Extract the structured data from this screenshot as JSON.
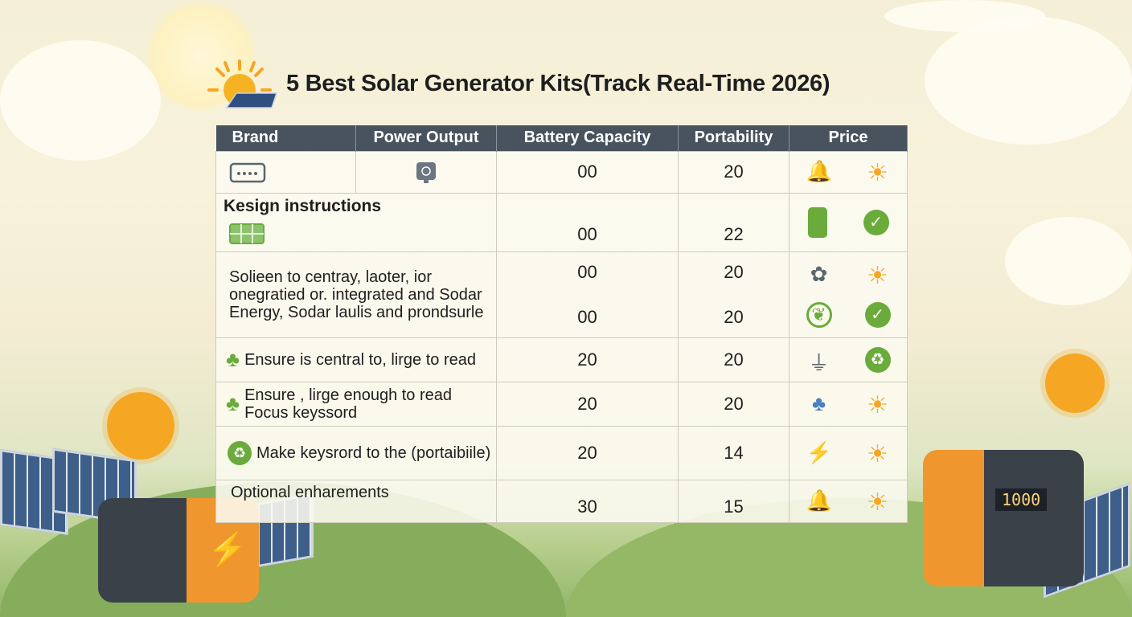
{
  "title": "5 Best Solar Generator Kits(Track Real-Time 2026)",
  "table": {
    "headers": [
      "Brand",
      "Power Output",
      "Battery Capacity",
      "Portability",
      "Price"
    ],
    "rows": [
      {
        "brand_icon": "generator-icon",
        "brand": "",
        "power_icon": "power-station-icon",
        "battery": [
          "00"
        ],
        "portability": [
          "20"
        ],
        "price_icons": [
          "alarm-bell-icon",
          "sun-icon"
        ]
      },
      {
        "brand": "Kesign instructions",
        "brand_icon": "solar-panel-icon",
        "battery": [
          "00"
        ],
        "portability": [
          "22"
        ],
        "price_icons": [
          "device-icon",
          "green-check-icon"
        ]
      },
      {
        "brand": "Solieen to centray, laoter, ior onegratied or. integrated and Sodar Energy, Sodar laulis and prondsurle",
        "battery": [
          "00",
          "00"
        ],
        "portability": [
          "20",
          "20"
        ],
        "price_icons": [
          "flower-plug-icon",
          "sun-icon",
          "leaf-icon",
          "green-check-icon"
        ]
      },
      {
        "brand": "Ensure is central to, lirge to read",
        "brand_icon": "solar-tree-icon",
        "battery": [
          "20"
        ],
        "portability": [
          "20"
        ],
        "price_icons": [
          "plug-icon",
          "recycle-icon"
        ]
      },
      {
        "brand": "Ensure , lirge enough to read Focus keyssord",
        "brand_icon": "solar-tree-icon",
        "battery": [
          "20"
        ],
        "portability": [
          "20"
        ],
        "price_icons": [
          "solar-tree-icon",
          "sun-icon"
        ]
      },
      {
        "brand": "Make keysrord to the (portaibiile)",
        "brand_icon": "recycle-icon",
        "battery": [
          "20"
        ],
        "portability": [
          "14"
        ],
        "price_icons": [
          "lightning-icon",
          "sun-icon"
        ]
      },
      {
        "brand": "Optional enharements",
        "battery": [
          "30"
        ],
        "portability": [
          "15"
        ],
        "price_icons": [
          "alarm-bell-icon",
          "sun-icon"
        ]
      }
    ]
  },
  "generator_display": "1000",
  "colors": {
    "header": "#48535e",
    "sun": "#f5a623",
    "green": "#6aab3c",
    "orange": "#f0962e"
  }
}
